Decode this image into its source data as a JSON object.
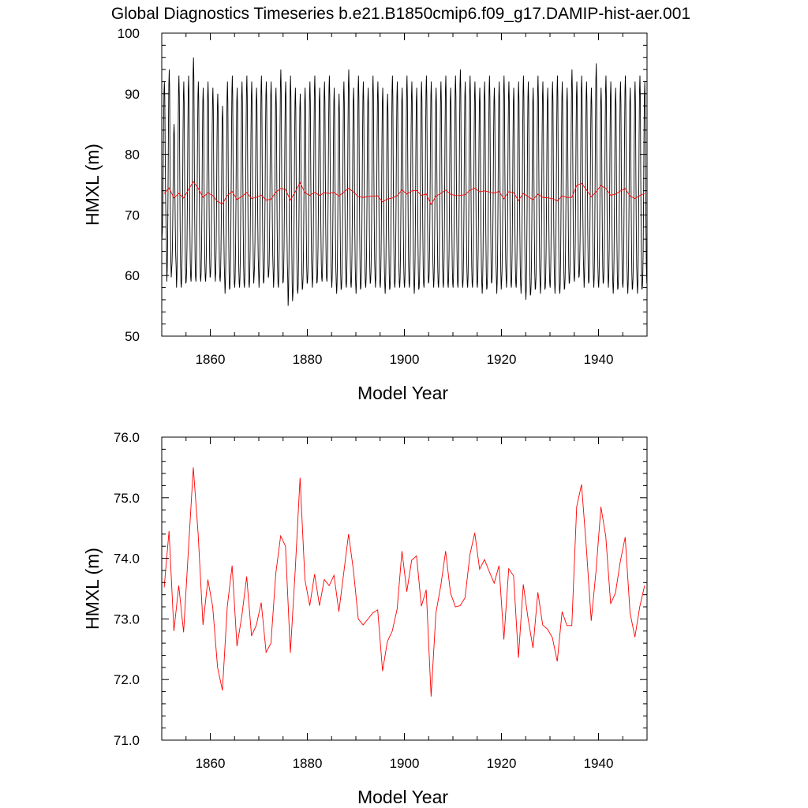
{
  "figure": {
    "title": "Global Diagnostics Timeseries b.e21.B1850cmip6.f09_g17.DAMIP-hist-aer.001"
  },
  "chart_data": [
    {
      "type": "line",
      "xlabel": "Model Year",
      "ylabel": "HMXL (m)",
      "xlim": [
        1850,
        1950
      ],
      "ylim": [
        50,
        100
      ],
      "x_ticks": [
        "1860",
        "1880",
        "1900",
        "1920",
        "1940"
      ],
      "y_ticks": [
        "50",
        "60",
        "70",
        "80",
        "90",
        "100"
      ],
      "grid": false,
      "series": [
        {
          "color": "#000000",
          "resolution": "monthly",
          "x_start": 1850.04,
          "x_step": 0.08333,
          "seasonal_peaks": [
            92,
            94,
            85,
            93,
            92,
            93,
            96,
            92,
            91,
            92,
            91,
            90,
            88,
            92,
            93,
            91,
            92,
            93,
            92,
            91,
            93,
            92,
            92,
            91,
            94,
            92,
            93,
            91,
            90,
            91,
            92,
            93,
            91,
            92,
            93,
            91,
            90,
            92,
            94,
            91,
            93,
            92,
            91,
            93,
            92,
            91,
            90,
            93,
            92,
            91,
            93,
            92,
            91,
            92,
            93,
            92,
            91,
            92,
            93,
            91,
            93,
            94,
            92,
            93,
            92,
            91,
            92,
            93,
            91,
            92,
            93,
            92,
            91,
            92,
            93,
            92,
            91,
            93,
            92,
            91,
            92,
            93,
            92,
            91,
            94,
            92,
            93,
            92,
            91,
            95,
            91,
            93,
            92,
            91,
            92,
            93,
            91,
            92,
            93,
            92
          ],
          "seasonal_troughs": [
            66,
            59,
            61,
            58,
            58,
            59,
            59,
            59,
            59,
            59,
            60,
            59,
            59,
            57,
            58,
            58,
            58,
            58,
            58,
            60,
            58,
            59,
            60,
            58,
            58,
            59,
            55,
            57,
            57,
            58,
            59,
            58,
            59,
            59,
            59,
            58,
            57,
            58,
            58,
            58,
            57,
            58,
            58,
            59,
            58,
            58,
            57,
            58,
            58,
            58,
            58,
            58,
            57,
            58,
            58,
            59,
            58,
            58,
            58,
            58,
            58,
            58,
            58,
            58,
            58,
            58,
            57,
            58,
            59,
            57,
            59,
            58,
            58,
            58,
            57,
            56,
            57,
            58,
            57,
            58,
            58,
            57,
            57,
            58,
            59,
            59,
            60,
            58,
            59,
            58,
            58,
            59,
            58,
            57,
            58,
            58,
            57,
            58,
            57,
            58
          ]
        },
        {
          "color": "#ff0000",
          "resolution": "annual",
          "x": [
            1850,
            1851,
            1852,
            1853,
            1854,
            1855,
            1856,
            1857,
            1858,
            1859,
            1860,
            1861,
            1862,
            1863,
            1864,
            1865,
            1866,
            1867,
            1868,
            1869,
            1870,
            1871,
            1872,
            1873,
            1874,
            1875,
            1876,
            1877,
            1878,
            1879,
            1880,
            1881,
            1882,
            1883,
            1884,
            1885,
            1886,
            1887,
            1888,
            1889,
            1890,
            1891,
            1892,
            1893,
            1894,
            1895,
            1896,
            1897,
            1898,
            1899,
            1900,
            1901,
            1902,
            1903,
            1904,
            1905,
            1906,
            1907,
            1908,
            1909,
            1910,
            1911,
            1912,
            1913,
            1914,
            1915,
            1916,
            1917,
            1918,
            1919,
            1920,
            1921,
            1922,
            1923,
            1924,
            1925,
            1926,
            1927,
            1928,
            1929,
            1930,
            1931,
            1932,
            1933,
            1934,
            1935,
            1936,
            1937,
            1938,
            1939,
            1940,
            1941,
            1942,
            1943,
            1944,
            1945,
            1946,
            1947,
            1948,
            1949
          ],
          "values": [
            73.52,
            74.45,
            72.8,
            73.55,
            72.78,
            74.15,
            75.5,
            74.4,
            72.9,
            73.65,
            73.2,
            72.2,
            71.82,
            73.2,
            73.88,
            72.55,
            73.05,
            73.7,
            72.72,
            72.9,
            73.27,
            72.45,
            72.6,
            73.75,
            74.37,
            74.2,
            72.44,
            73.8,
            75.33,
            73.65,
            73.22,
            73.74,
            73.22,
            73.65,
            73.55,
            73.72,
            73.12,
            73.76,
            74.4,
            73.8,
            73.0,
            72.9,
            73.0,
            73.1,
            73.15,
            72.14,
            72.63,
            72.8,
            73.16,
            74.12,
            73.45,
            73.97,
            74.04,
            73.21,
            73.48,
            71.72,
            73.1,
            73.55,
            74.12,
            73.43,
            73.2,
            73.22,
            73.35,
            74.06,
            74.42,
            73.82,
            73.98,
            73.78,
            73.59,
            73.88,
            72.66,
            73.83,
            73.71,
            72.36,
            73.57,
            73.0,
            72.52,
            73.44,
            72.9,
            72.83,
            72.69,
            72.3,
            73.12,
            72.89,
            72.89,
            74.85,
            75.22,
            74.17,
            72.97,
            73.8,
            74.85,
            74.36,
            73.25,
            73.43,
            73.95,
            74.35,
            73.1,
            72.7,
            73.2,
            73.55
          ]
        }
      ]
    },
    {
      "type": "line",
      "xlabel": "Model Year",
      "ylabel": "HMXL (m)",
      "xlim": [
        1850,
        1950
      ],
      "ylim": [
        71,
        76
      ],
      "x_ticks": [
        "1860",
        "1880",
        "1900",
        "1920",
        "1940"
      ],
      "y_ticks": [
        "71.0",
        "72.0",
        "73.0",
        "74.0",
        "75.0",
        "76.0"
      ],
      "grid": false,
      "series": [
        {
          "color": "#ff0000",
          "x": [
            1850,
            1851,
            1852,
            1853,
            1854,
            1855,
            1856,
            1857,
            1858,
            1859,
            1860,
            1861,
            1862,
            1863,
            1864,
            1865,
            1866,
            1867,
            1868,
            1869,
            1870,
            1871,
            1872,
            1873,
            1874,
            1875,
            1876,
            1877,
            1878,
            1879,
            1880,
            1881,
            1882,
            1883,
            1884,
            1885,
            1886,
            1887,
            1888,
            1889,
            1890,
            1891,
            1892,
            1893,
            1894,
            1895,
            1896,
            1897,
            1898,
            1899,
            1900,
            1901,
            1902,
            1903,
            1904,
            1905,
            1906,
            1907,
            1908,
            1909,
            1910,
            1911,
            1912,
            1913,
            1914,
            1915,
            1916,
            1917,
            1918,
            1919,
            1920,
            1921,
            1922,
            1923,
            1924,
            1925,
            1926,
            1927,
            1928,
            1929,
            1930,
            1931,
            1932,
            1933,
            1934,
            1935,
            1936,
            1937,
            1938,
            1939,
            1940,
            1941,
            1942,
            1943,
            1944,
            1945,
            1946,
            1947,
            1948,
            1949
          ],
          "values": [
            73.52,
            74.45,
            72.8,
            73.55,
            72.78,
            74.15,
            75.5,
            74.4,
            72.9,
            73.65,
            73.2,
            72.2,
            71.82,
            73.2,
            73.88,
            72.55,
            73.05,
            73.7,
            72.72,
            72.9,
            73.27,
            72.45,
            72.6,
            73.75,
            74.37,
            74.2,
            72.44,
            73.8,
            75.33,
            73.65,
            73.22,
            73.74,
            73.22,
            73.65,
            73.55,
            73.72,
            73.12,
            73.76,
            74.4,
            73.8,
            73.0,
            72.9,
            73.0,
            73.1,
            73.15,
            72.14,
            72.63,
            72.8,
            73.16,
            74.12,
            73.45,
            73.97,
            74.04,
            73.21,
            73.48,
            71.72,
            73.1,
            73.55,
            74.12,
            73.43,
            73.2,
            73.22,
            73.35,
            74.06,
            74.42,
            73.82,
            73.98,
            73.78,
            73.59,
            73.88,
            72.66,
            73.83,
            73.71,
            72.36,
            73.57,
            73.0,
            72.52,
            73.44,
            72.9,
            72.83,
            72.69,
            72.3,
            73.12,
            72.89,
            72.89,
            74.85,
            75.22,
            74.17,
            72.97,
            73.8,
            74.85,
            74.36,
            73.25,
            73.43,
            73.95,
            74.35,
            73.1,
            72.7,
            73.2,
            73.55
          ]
        }
      ]
    }
  ]
}
